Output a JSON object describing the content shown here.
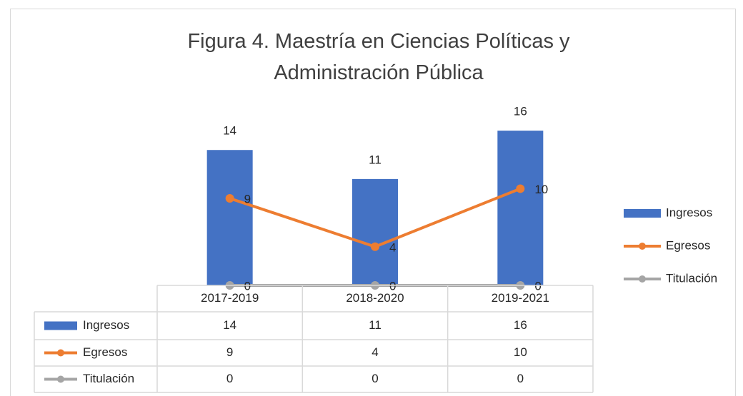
{
  "chart_data": {
    "type": "bar",
    "title": "Figura 4. Maestría en Ciencias Políticas y Administración Pública",
    "categories": [
      "2017-2019",
      "2018-2020",
      "2019-2021"
    ],
    "series": [
      {
        "name": "Ingresos",
        "type": "bar",
        "color": "#4472c4",
        "values": [
          14,
          11,
          16
        ]
      },
      {
        "name": "Egresos",
        "type": "line",
        "color": "#ed7d31",
        "values": [
          9,
          4,
          10
        ]
      },
      {
        "name": "Titulación",
        "type": "line",
        "color": "#a5a5a5",
        "values": [
          0,
          0,
          0
        ]
      }
    ],
    "ylim": [
      0,
      18
    ],
    "legend": "right",
    "data_table": true
  }
}
